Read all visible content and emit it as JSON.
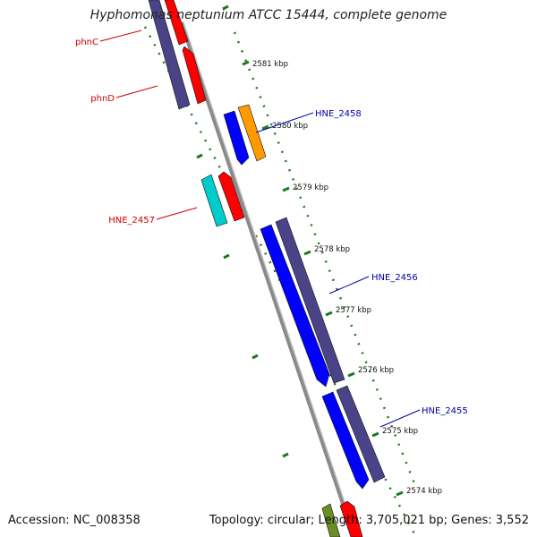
{
  "title": "Hyphomonas neptunium ATCC 15444, complete genome",
  "footer": {
    "accession": "Accession: NC_008358",
    "summary": "Topology: circular; Length: 3,705,021 bp; Genes: 3,552"
  },
  "ticks": [
    "2581 kbp",
    "2580 kbp",
    "2579 kbp",
    "2578 kbp",
    "2577 kbp",
    "2576 kbp",
    "2575 kbp",
    "2574 kbp"
  ],
  "gene_labels": [
    {
      "name": "phnC",
      "color": "#cc0000"
    },
    {
      "name": "phnD",
      "color": "#cc0000"
    },
    {
      "name": "HNE_2458",
      "color": "#0000aa"
    },
    {
      "name": "HNE_2457",
      "color": "#cc0000"
    },
    {
      "name": "HNE_2456",
      "color": "#0000aa"
    },
    {
      "name": "HNE_2455",
      "color": "#0000aa"
    }
  ],
  "colors": {
    "backbone": "#8a8a8a",
    "tick": "#1a7a1a",
    "red": "#ff0000",
    "dark_purple": "#4b4387",
    "blue": "#0000ff",
    "orange": "#ff9a00",
    "cyan": "#00cccc",
    "olive": "#6b8e23"
  }
}
